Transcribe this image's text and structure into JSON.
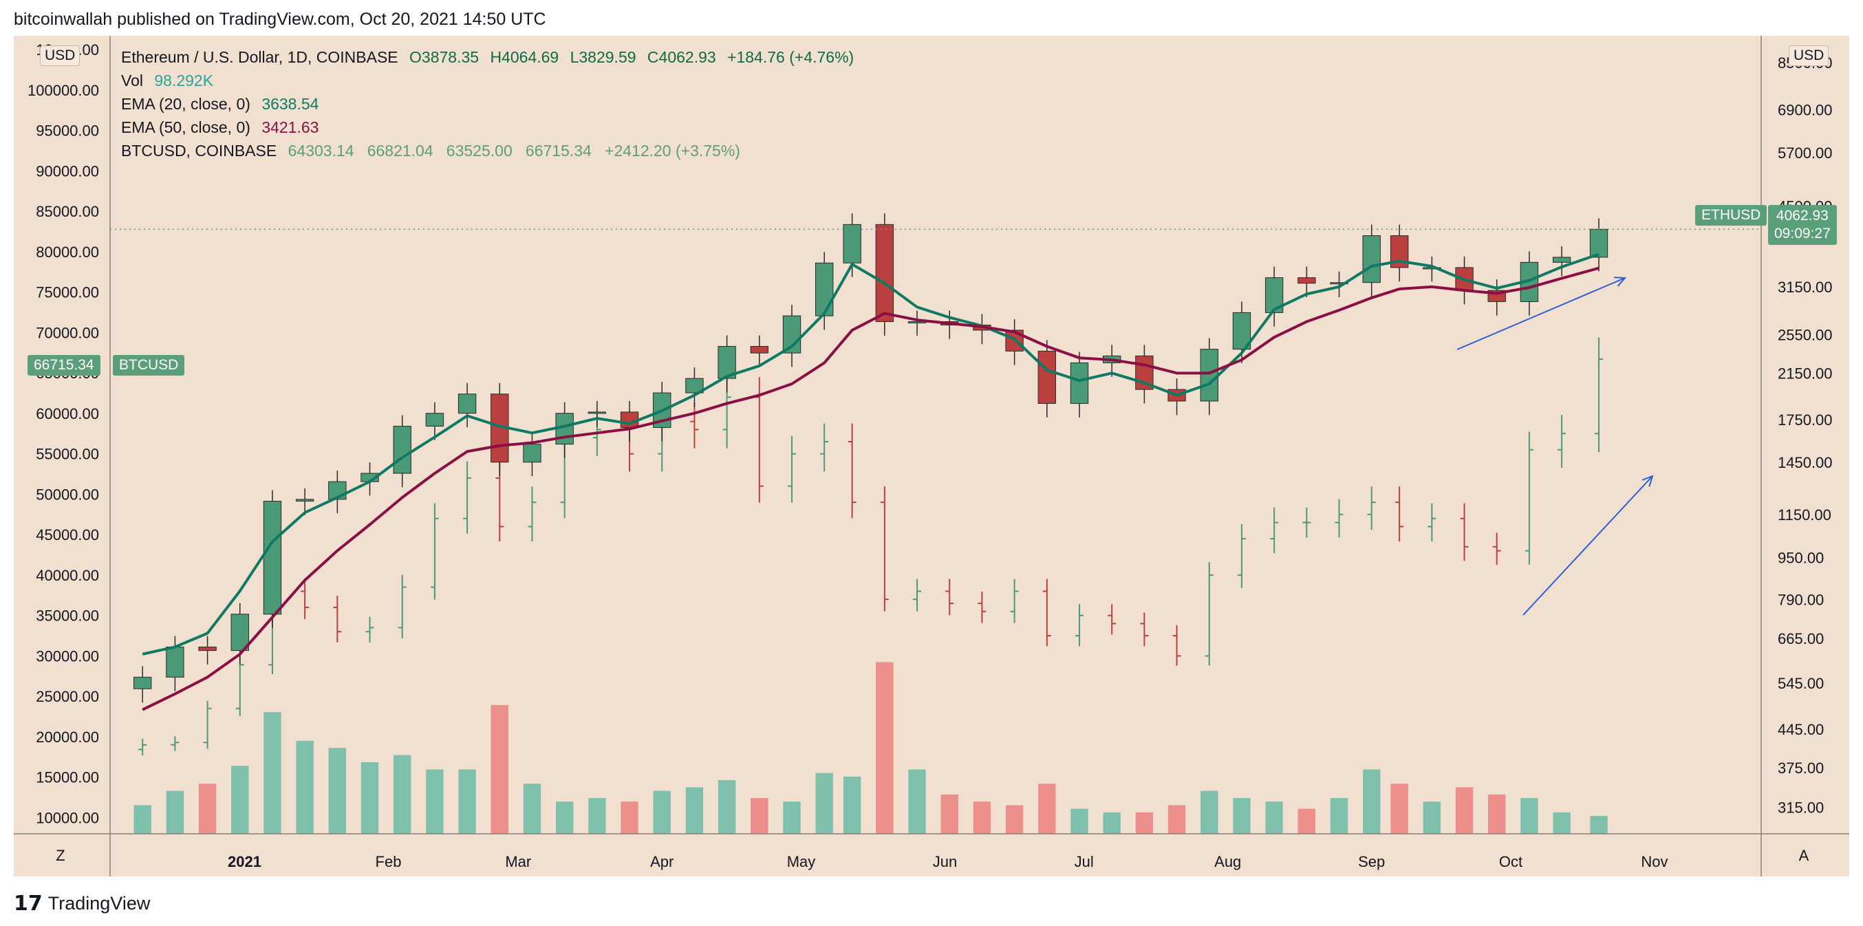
{
  "publisher_line": "bitcoinwallah published on TradingView.com, Oct 20, 2021 14:50 UTC",
  "footer_brand": "TradingView",
  "legend": {
    "symbol": "Ethereum / U.S. Dollar, 1D, COINBASE",
    "open": "O3878.35",
    "high": "H4064.69",
    "low": "L3829.59",
    "close": "C4062.93",
    "change": "+184.76 (+4.76%)",
    "vol_label": "Vol",
    "vol_value": "98.292K",
    "ema20_label": "EMA (20, close, 0)",
    "ema20_value": "3638.54",
    "ema50_label": "EMA (50, close, 0)",
    "ema50_value": "3421.63",
    "btc_label": "BTCUSD, COINBASE",
    "btc_values": "64303.14   66821.04   63525.00   66715.34   +2412.20 (+3.75%)"
  },
  "badges": {
    "btc_price": "66715.34",
    "btc_name": "BTCUSD",
    "eth_name": "ETHUSD",
    "eth_price": "4062.93",
    "eth_countdown": "09:09:27"
  },
  "axis_controls": {
    "left_currency": "USD",
    "right_currency": "USD",
    "left_corner": "Z",
    "right_corner": "A"
  },
  "colors": {
    "background": "#f1e0d0",
    "up": "#4a9a77",
    "down": "#b9403f",
    "ema20": "#0e7a63",
    "ema50": "#8a0f45",
    "vol_up": "#7fc0ac",
    "vol_down": "#ec8f8a",
    "arrow": "#2b5fd9"
  },
  "chart_data": {
    "type": "line",
    "title": "Ethereum / U.S. Dollar, 1D, COINBASE",
    "x_ticks": [
      "2021",
      "Feb",
      "Mar",
      "Apr",
      "May",
      "Jun",
      "Jul",
      "Aug",
      "Sep",
      "Oct",
      "Nov"
    ],
    "left_axis": {
      "label": "BTCUSD (USD)",
      "ticks": [
        "10000.00",
        "15000.00",
        "20000.00",
        "25000.00",
        "30000.00",
        "35000.00",
        "40000.00",
        "45000.00",
        "50000.00",
        "55000.00",
        "60000.00",
        "65000.00",
        "70000.00",
        "75000.00",
        "80000.00",
        "85000.00",
        "90000.00",
        "95000.00",
        "100000.00",
        "10___.00"
      ],
      "range": [
        8000,
        105000
      ]
    },
    "right_axis": {
      "label": "ETHUSD (USD), log scale",
      "scale": "log",
      "ticks": [
        "8500.00",
        "6900.00",
        "5700.00",
        "4500.00",
        "3150.00",
        "2550.00",
        "2150.00",
        "1750.00",
        "1450.00",
        "1150.00",
        "950.00",
        "790.00",
        "665.00",
        "545.00",
        "445.00",
        "375.00",
        "315.00"
      ]
    },
    "series": [
      {
        "name": "ETHUSD",
        "style": "candlestick",
        "dates": [
          "2020-12-10",
          "2020-12-17",
          "2020-12-24",
          "2020-12-31",
          "2021-01-07",
          "2021-01-14",
          "2021-01-21",
          "2021-01-28",
          "2021-02-04",
          "2021-02-11",
          "2021-02-18",
          "2021-02-25",
          "2021-03-04",
          "2021-03-11",
          "2021-03-18",
          "2021-03-25",
          "2021-04-01",
          "2021-04-08",
          "2021-04-15",
          "2021-04-22",
          "2021-04-29",
          "2021-05-06",
          "2021-05-12",
          "2021-05-19",
          "2021-05-26",
          "2021-06-02",
          "2021-06-09",
          "2021-06-16",
          "2021-06-23",
          "2021-06-30",
          "2021-07-07",
          "2021-07-14",
          "2021-07-21",
          "2021-07-28",
          "2021-08-04",
          "2021-08-11",
          "2021-08-18",
          "2021-08-25",
          "2021-09-01",
          "2021-09-07",
          "2021-09-14",
          "2021-09-21",
          "2021-09-28",
          "2021-10-05",
          "2021-10-12",
          "2021-10-20"
        ],
        "close": [
          560,
          640,
          630,
          740,
          1220,
          1230,
          1330,
          1380,
          1700,
          1800,
          1960,
          1450,
          1570,
          1800,
          1810,
          1690,
          1970,
          2100,
          2420,
          2350,
          2770,
          3500,
          4150,
          2700,
          2700,
          2660,
          2600,
          2370,
          1880,
          2250,
          2320,
          2000,
          1900,
          2390,
          2810,
          3280,
          3200,
          3210,
          3950,
          3430,
          3430,
          3100,
          2950,
          3510,
          3590,
          4062.93
        ]
      },
      {
        "name": "EMA (20, close, 0)",
        "style": "line",
        "values": [
          620,
          640,
          680,
          820,
          1020,
          1160,
          1240,
          1330,
          1480,
          1620,
          1780,
          1700,
          1650,
          1700,
          1760,
          1720,
          1820,
          1950,
          2120,
          2220,
          2420,
          2800,
          3480,
          3200,
          2880,
          2750,
          2650,
          2500,
          2180,
          2080,
          2150,
          2060,
          1950,
          2050,
          2350,
          2850,
          3050,
          3150,
          3450,
          3530,
          3450,
          3250,
          3130,
          3240,
          3440,
          3638.54
        ]
      },
      {
        "name": "EMA (50, close, 0)",
        "style": "line",
        "values": [
          485,
          520,
          560,
          620,
          730,
          860,
          980,
          1100,
          1240,
          1380,
          1520,
          1560,
          1580,
          1620,
          1650,
          1680,
          1740,
          1800,
          1880,
          1950,
          2050,
          2250,
          2600,
          2800,
          2720,
          2680,
          2640,
          2580,
          2420,
          2300,
          2280,
          2230,
          2150,
          2150,
          2280,
          2520,
          2700,
          2840,
          3000,
          3120,
          3150,
          3100,
          3060,
          3140,
          3270,
          3421.63
        ]
      },
      {
        "name": "BTCUSD",
        "style": "ohlc-bars",
        "values": [
          19000,
          19300,
          23500,
          28900,
          38000,
          36000,
          33000,
          33500,
          38500,
          47000,
          52000,
          46000,
          49000,
          57000,
          58000,
          55000,
          59000,
          58000,
          62000,
          51000,
          55000,
          56500,
          49000,
          37000,
          38000,
          36500,
          35500,
          38000,
          32500,
          35000,
          34000,
          32500,
          30000,
          40000,
          44500,
          46500,
          46500,
          47500,
          49000,
          46000,
          47000,
          43500,
          43000,
          55500,
          57500,
          66715.34
        ]
      },
      {
        "name": "Vol",
        "style": "histogram",
        "values": [
          8,
          12,
          14,
          19,
          34,
          26,
          24,
          20,
          22,
          18,
          18,
          36,
          14,
          9,
          10,
          9,
          12,
          13,
          15,
          10,
          9,
          17,
          16,
          48,
          18,
          11,
          9,
          8,
          14,
          7,
          6,
          6,
          8,
          12,
          10,
          9,
          7,
          10,
          18,
          14,
          9,
          13,
          11,
          10,
          6,
          5
        ]
      }
    ]
  }
}
